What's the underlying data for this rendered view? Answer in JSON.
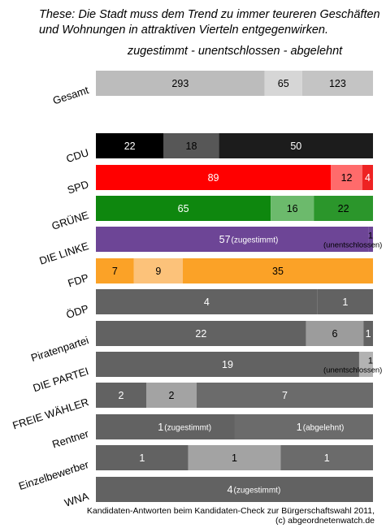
{
  "title_lines": [
    "These: Die Stadt muss dem Trend zu immer teureren Geschäften",
    "und Wohnungen in attraktiven Vierteln entgegenwirken."
  ],
  "subtitle": "zugestimmt - unentschlossen - abgelehnt",
  "footer_lines": [
    "Kandidaten-Antworten beim Kandidaten-Check zur Bürgerschaftswahl 2011,",
    "(c) abgeordnetenwatch.de"
  ],
  "chart_data": {
    "type": "bar",
    "orientation": "horizontal",
    "stacked": "percent",
    "series_order": [
      "zugestimmt",
      "unentschlossen",
      "abgelehnt"
    ],
    "categories": [
      "Gesamt",
      "CDU",
      "SPD",
      "GRÜNE",
      "DIE LINKE",
      "FDP",
      "ÖDP",
      "Piratenpartei",
      "DIE PARTEI",
      "FREIE WÄHLER",
      "Rentner",
      "Einzelbewerber",
      "WNA"
    ],
    "rows": [
      {
        "label": "Gesamt",
        "segments": [
          {
            "value": 293,
            "label": "293",
            "color": "#bcbcbc",
            "text_color": "#000000"
          },
          {
            "value": 65,
            "label": "65",
            "color": "#d6d6d6",
            "text_color": "#000000"
          },
          {
            "value": 123,
            "label": "123",
            "color": "#c4c4c4",
            "text_color": "#000000"
          }
        ]
      },
      {
        "label": "CDU",
        "segments": [
          {
            "value": 22,
            "label": "22",
            "color": "#000000",
            "text_color": "#ffffff"
          },
          {
            "value": 18,
            "label": "18",
            "color": "#575757",
            "text_color": "#000000"
          },
          {
            "value": 50,
            "label": "50",
            "color": "#1c1c1c",
            "text_color": "#ffffff"
          }
        ]
      },
      {
        "label": "SPD",
        "segments": [
          {
            "value": 89,
            "label": "89",
            "color": "#ff0000",
            "text_color": "#ffffff"
          },
          {
            "value": 12,
            "label": "12",
            "color": "#ff6b6b",
            "text_color": "#000000"
          },
          {
            "value": 4,
            "label": "4",
            "color": "#ee2222",
            "text_color": "#ffffff"
          }
        ]
      },
      {
        "label": "GRÜNE",
        "segments": [
          {
            "value": 65,
            "label": "65",
            "color": "#0e870e",
            "text_color": "#ffffff"
          },
          {
            "value": 16,
            "label": "16",
            "color": "#6cba6c",
            "text_color": "#000000"
          },
          {
            "value": 22,
            "label": "22",
            "color": "#2b962b",
            "text_color": "#000000"
          }
        ]
      },
      {
        "label": "DIE LINKE",
        "segments": [
          {
            "value": 57,
            "label": "57",
            "note": "(zugestimmt)",
            "color": "#6d4596",
            "text_color": "#ffffff"
          },
          {
            "value": 1,
            "label": "1",
            "note": "(unentschlossen)",
            "color": "#6d4596",
            "text_color": "#000000",
            "outside": true
          }
        ]
      },
      {
        "label": "FDP",
        "segments": [
          {
            "value": 7,
            "label": "7",
            "color": "#fba227",
            "text_color": "#000000"
          },
          {
            "value": 9,
            "label": "9",
            "color": "#fcc27a",
            "text_color": "#000000"
          },
          {
            "value": 35,
            "label": "35",
            "color": "#fba227",
            "text_color": "#000000"
          }
        ]
      },
      {
        "label": "ÖDP",
        "segments": [
          {
            "value": 4,
            "label": "4",
            "color": "#626262",
            "text_color": "#ffffff"
          },
          {
            "value": 1,
            "label": "1",
            "color": "#626262",
            "text_color": "#ffffff"
          }
        ]
      },
      {
        "label": "Piratenpartei",
        "segments": [
          {
            "value": 22,
            "label": "22",
            "color": "#626262",
            "text_color": "#ffffff"
          },
          {
            "value": 6,
            "label": "6",
            "color": "#9c9c9c",
            "text_color": "#000000"
          },
          {
            "value": 1,
            "label": "1",
            "color": "#626262",
            "text_color": "#ffffff"
          }
        ]
      },
      {
        "label": "DIE PARTEI",
        "segments": [
          {
            "value": 19,
            "label": "19",
            "color": "#626262",
            "text_color": "#ffffff"
          },
          {
            "value": 1,
            "label": "1",
            "note": "(unentschlossen)",
            "color": "#b2b2b2",
            "text_color": "#000000",
            "outside": true
          }
        ]
      },
      {
        "label": "FREIE WÄHLER",
        "segments": [
          {
            "value": 2,
            "label": "2",
            "color": "#626262",
            "text_color": "#ffffff"
          },
          {
            "value": 2,
            "label": "2",
            "color": "#a3a3a3",
            "text_color": "#000000"
          },
          {
            "value": 7,
            "label": "7",
            "color": "#6b6b6b",
            "text_color": "#ffffff"
          }
        ]
      },
      {
        "label": "Rentner",
        "segments": [
          {
            "value": 1,
            "label": "1",
            "note": "(zugestimmt)",
            "color": "#626262",
            "text_color": "#ffffff"
          },
          {
            "value": 1,
            "label": "1",
            "note": "(abgelehnt)",
            "color": "#6b6b6b",
            "text_color": "#ffffff"
          }
        ]
      },
      {
        "label": "Einzelbewerber",
        "segments": [
          {
            "value": 1,
            "label": "1",
            "color": "#626262",
            "text_color": "#ffffff"
          },
          {
            "value": 1,
            "label": "1",
            "color": "#a3a3a3",
            "text_color": "#000000"
          },
          {
            "value": 1,
            "label": "1",
            "color": "#6b6b6b",
            "text_color": "#ffffff"
          }
        ]
      },
      {
        "label": "WNA",
        "segments": [
          {
            "value": 4,
            "label": "4",
            "note": "(zugestimmt)",
            "color": "#626262",
            "text_color": "#ffffff"
          }
        ]
      }
    ]
  }
}
